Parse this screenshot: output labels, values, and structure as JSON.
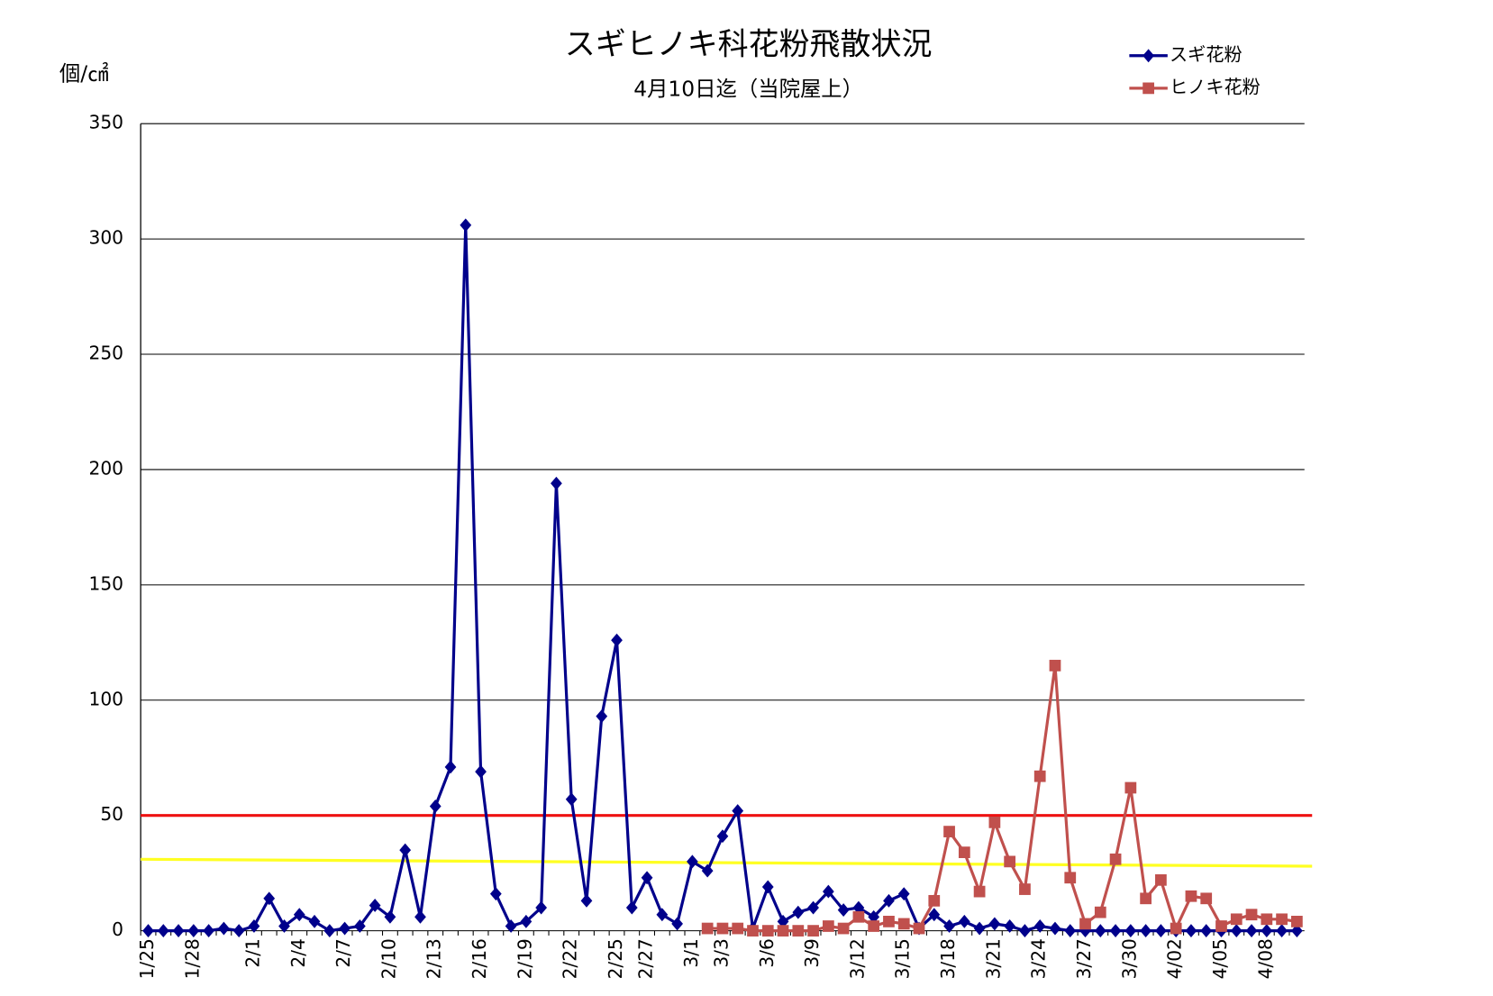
{
  "chart_data": {
    "type": "line",
    "title": "スギヒノキ科花粉飛散状況",
    "subtitle": "4月10日迄（当院屋上）",
    "y_label": "個/㎠",
    "categories": [
      "1/25",
      null,
      null,
      "1/28",
      null,
      null,
      null,
      "2/1",
      null,
      null,
      "2/4",
      null,
      null,
      "2/7",
      null,
      null,
      "2/10",
      null,
      null,
      "2/13",
      null,
      null,
      "2/16",
      null,
      null,
      "2/19",
      null,
      null,
      "2/22",
      null,
      null,
      "2/25",
      null,
      "2/27",
      null,
      null,
      "3/1",
      null,
      "3/3",
      null,
      null,
      "3/6",
      null,
      null,
      "3/9",
      null,
      null,
      "3/12",
      null,
      null,
      "3/15",
      null,
      null,
      "3/18",
      null,
      null,
      "3/21",
      null,
      null,
      "3/24",
      null,
      null,
      "3/27",
      null,
      null,
      "3/30",
      null,
      null,
      "4/02",
      null,
      null,
      "4/05",
      null,
      null,
      "4/08",
      null,
      null
    ],
    "series": [
      {
        "name": "スギ花粉",
        "color": "#00008b",
        "marker": "diamond",
        "values": [
          0,
          0,
          0,
          0,
          0,
          1,
          0,
          2,
          14,
          2,
          7,
          4,
          0,
          1,
          2,
          11,
          6,
          35,
          6,
          54,
          71,
          306,
          69,
          16,
          2,
          4,
          10,
          194,
          57,
          13,
          93,
          126,
          10,
          23,
          7,
          3,
          30,
          26,
          41,
          52,
          1,
          19,
          4,
          8,
          10,
          17,
          9,
          10,
          6,
          13,
          16,
          1,
          7,
          2,
          4,
          1,
          3,
          2,
          0,
          2,
          1,
          0,
          0,
          0,
          0,
          0,
          0,
          0,
          0,
          0,
          0,
          0,
          0,
          0,
          0,
          0,
          0
        ]
      },
      {
        "name": "ヒノキ花粉",
        "color": "#c0504d",
        "marker": "square",
        "values": [
          null,
          null,
          null,
          null,
          null,
          null,
          null,
          null,
          null,
          null,
          null,
          null,
          null,
          null,
          null,
          null,
          null,
          null,
          null,
          null,
          null,
          null,
          null,
          null,
          null,
          null,
          null,
          null,
          null,
          null,
          null,
          null,
          null,
          null,
          null,
          null,
          null,
          1,
          1,
          1,
          0,
          0,
          0,
          0,
          0,
          2,
          1,
          6,
          2,
          4,
          3,
          1,
          13,
          43,
          34,
          17,
          47,
          30,
          18,
          67,
          115,
          23,
          3,
          8,
          31,
          62,
          14,
          22,
          1,
          15,
          14,
          2,
          5,
          7,
          5,
          5,
          4
        ]
      }
    ],
    "reference_lines": [
      {
        "values": [
          50,
          50
        ],
        "color": "#ee1111"
      },
      {
        "values": [
          31,
          28
        ],
        "color": "#ffff22"
      }
    ],
    "ylim": [
      0,
      350
    ],
    "yticks": [
      0,
      50,
      100,
      150,
      200,
      250,
      300,
      350
    ],
    "grid": true,
    "legend": "top-right"
  }
}
